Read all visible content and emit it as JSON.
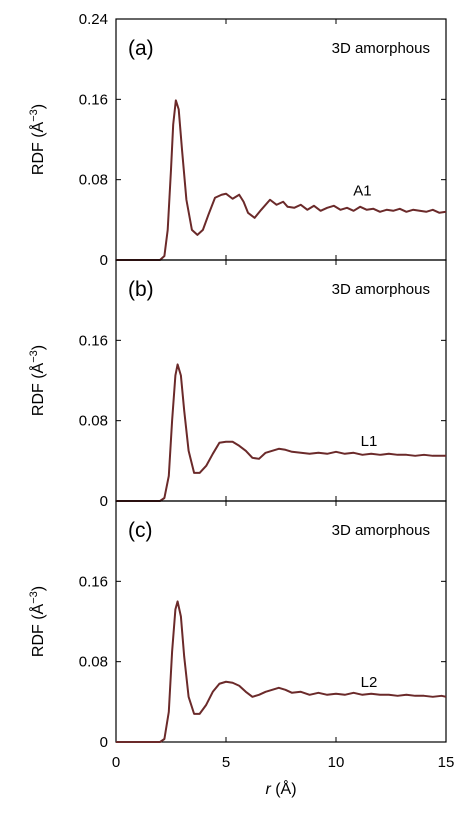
{
  "colors": {
    "curve": "#6b2a2a",
    "axis": "#000000",
    "background": "#ffffff"
  },
  "chart_data": {
    "type": "line",
    "shared_x": {
      "label_italic": "r",
      "label_unit": "(Å)",
      "range": [
        0,
        15
      ],
      "ticks": [
        0,
        5,
        10,
        15
      ],
      "tick_labels": [
        "0",
        "5",
        "10",
        "15"
      ]
    },
    "ylabel_main": "RDF (Å",
    "ylabel_sup": "−3",
    "ylabel_close": ")",
    "grid": false,
    "panels": [
      {
        "letter": "(a)",
        "note": "3D amorphous",
        "series_label": "A1",
        "ylim": [
          0,
          0.24
        ],
        "yticks": [
          0,
          0.08,
          0.16,
          0.24
        ],
        "ytick_labels": [
          "0",
          "0.08",
          "0.16",
          "0.24"
        ],
        "x": [
          0,
          2.0,
          2.2,
          2.35,
          2.5,
          2.6,
          2.72,
          2.85,
          3.0,
          3.2,
          3.45,
          3.7,
          3.95,
          4.2,
          4.5,
          4.8,
          5.0,
          5.3,
          5.6,
          5.8,
          6.0,
          6.3,
          6.6,
          7.0,
          7.3,
          7.6,
          7.8,
          8.1,
          8.4,
          8.7,
          9.0,
          9.3,
          9.6,
          9.9,
          10.2,
          10.5,
          10.8,
          11.1,
          11.4,
          11.7,
          12.0,
          12.3,
          12.6,
          12.9,
          13.2,
          13.5,
          13.8,
          14.1,
          14.4,
          14.7,
          15.0
        ],
        "y": [
          0,
          0.0,
          0.004,
          0.03,
          0.09,
          0.135,
          0.159,
          0.15,
          0.11,
          0.06,
          0.03,
          0.025,
          0.03,
          0.045,
          0.062,
          0.065,
          0.066,
          0.061,
          0.065,
          0.058,
          0.047,
          0.042,
          0.05,
          0.06,
          0.055,
          0.058,
          0.053,
          0.052,
          0.055,
          0.05,
          0.054,
          0.049,
          0.052,
          0.054,
          0.05,
          0.052,
          0.049,
          0.053,
          0.05,
          0.051,
          0.048,
          0.05,
          0.049,
          0.051,
          0.048,
          0.05,
          0.049,
          0.048,
          0.05,
          0.047,
          0.048
        ]
      },
      {
        "letter": "(b)",
        "note": "3D amorphous",
        "series_label": "L1",
        "ylim": [
          0,
          0.24
        ],
        "yticks": [
          0,
          0.08,
          0.16
        ],
        "ytick_labels": [
          "0",
          "0.08",
          "0.16"
        ],
        "x": [
          0,
          2.0,
          2.2,
          2.4,
          2.55,
          2.7,
          2.8,
          2.95,
          3.1,
          3.3,
          3.55,
          3.8,
          4.1,
          4.4,
          4.7,
          5.0,
          5.3,
          5.6,
          5.9,
          6.2,
          6.5,
          6.8,
          7.1,
          7.4,
          7.7,
          8.0,
          8.4,
          8.8,
          9.2,
          9.6,
          10.0,
          10.4,
          10.8,
          11.2,
          11.6,
          12.0,
          12.4,
          12.8,
          13.2,
          13.6,
          14.0,
          14.4,
          14.8,
          15.0
        ],
        "y": [
          0,
          0.0,
          0.003,
          0.025,
          0.08,
          0.125,
          0.136,
          0.125,
          0.09,
          0.05,
          0.028,
          0.028,
          0.035,
          0.047,
          0.058,
          0.059,
          0.059,
          0.055,
          0.05,
          0.043,
          0.042,
          0.048,
          0.05,
          0.052,
          0.051,
          0.049,
          0.048,
          0.047,
          0.048,
          0.047,
          0.049,
          0.047,
          0.048,
          0.046,
          0.047,
          0.046,
          0.047,
          0.046,
          0.046,
          0.045,
          0.046,
          0.045,
          0.045,
          0.045
        ]
      },
      {
        "letter": "(c)",
        "note": "3D amorphous",
        "series_label": "L2",
        "ylim": [
          0,
          0.24
        ],
        "yticks": [
          0,
          0.08,
          0.16
        ],
        "ytick_labels": [
          "0",
          "0.08",
          "0.16"
        ],
        "x": [
          0,
          2.0,
          2.2,
          2.4,
          2.55,
          2.7,
          2.8,
          2.95,
          3.1,
          3.3,
          3.55,
          3.8,
          4.1,
          4.4,
          4.7,
          5.0,
          5.3,
          5.6,
          5.9,
          6.2,
          6.5,
          6.8,
          7.1,
          7.4,
          7.7,
          8.0,
          8.4,
          8.8,
          9.2,
          9.6,
          10.0,
          10.4,
          10.8,
          11.2,
          11.6,
          12.0,
          12.4,
          12.8,
          13.2,
          13.6,
          14.0,
          14.4,
          14.8,
          15.0
        ],
        "y": [
          0,
          0.0,
          0.003,
          0.03,
          0.09,
          0.132,
          0.14,
          0.125,
          0.085,
          0.045,
          0.028,
          0.028,
          0.037,
          0.05,
          0.058,
          0.06,
          0.059,
          0.056,
          0.05,
          0.045,
          0.047,
          0.05,
          0.052,
          0.054,
          0.052,
          0.049,
          0.05,
          0.047,
          0.049,
          0.047,
          0.048,
          0.047,
          0.049,
          0.047,
          0.048,
          0.047,
          0.047,
          0.046,
          0.047,
          0.046,
          0.046,
          0.045,
          0.046,
          0.045
        ]
      }
    ]
  }
}
